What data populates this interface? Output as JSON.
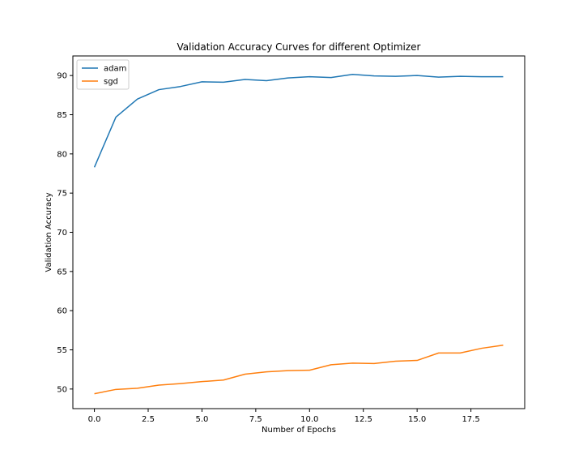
{
  "chart_data": {
    "type": "line",
    "title": "Validation Accuracy Curves for different Optimizer",
    "xlabel": "Number of Epochs",
    "ylabel": "Validation Accuracy",
    "xlim": [
      -1.0,
      20.0
    ],
    "ylim": [
      47.5,
      92.5
    ],
    "xticks": [
      0.0,
      2.5,
      5.0,
      7.5,
      10.0,
      12.5,
      15.0,
      17.5
    ],
    "xtick_labels": [
      "0.0",
      "2.5",
      "5.0",
      "7.5",
      "10.0",
      "12.5",
      "15.0",
      "17.5"
    ],
    "yticks": [
      50,
      55,
      60,
      65,
      70,
      75,
      80,
      85,
      90
    ],
    "ytick_labels": [
      "50",
      "55",
      "60",
      "65",
      "70",
      "75",
      "80",
      "85",
      "90"
    ],
    "grid": false,
    "legend": "top-left",
    "x": [
      0,
      1,
      2,
      3,
      4,
      5,
      6,
      7,
      8,
      9,
      10,
      11,
      12,
      13,
      14,
      15,
      16,
      17,
      18,
      19
    ],
    "series": [
      {
        "name": "adam",
        "color": "#1f77b4",
        "values": [
          78.3,
          84.7,
          87.0,
          88.2,
          88.6,
          89.2,
          89.15,
          89.5,
          89.35,
          89.7,
          89.85,
          89.75,
          90.15,
          89.95,
          89.9,
          90.0,
          89.8,
          89.9,
          89.85,
          89.85
        ]
      },
      {
        "name": "sgd",
        "color": "#ff7f0e",
        "values": [
          49.4,
          49.95,
          50.1,
          50.5,
          50.7,
          50.95,
          51.15,
          51.9,
          52.2,
          52.35,
          52.4,
          53.1,
          53.3,
          53.25,
          53.55,
          53.65,
          54.6,
          54.6,
          55.2,
          55.6
        ]
      }
    ]
  }
}
